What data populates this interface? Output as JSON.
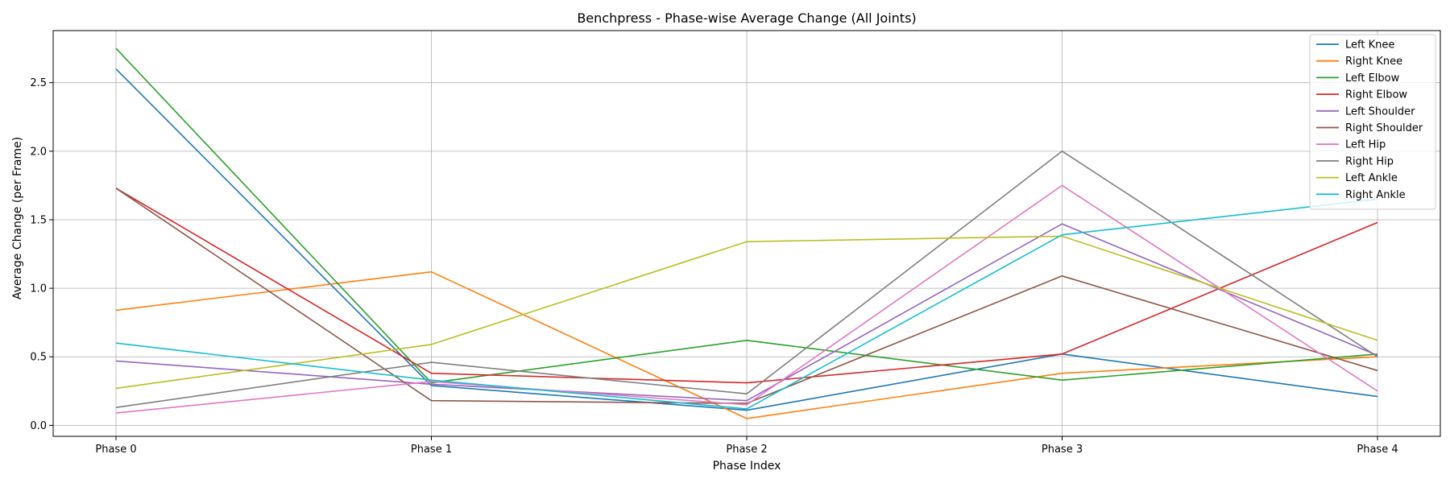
{
  "chart_data": {
    "type": "line",
    "title": "Benchpress - Phase-wise Average Change (All Joints)",
    "xlabel": "Phase Index",
    "ylabel": "Average Change (per Frame)",
    "categories": [
      "Phase 0",
      "Phase 1",
      "Phase 2",
      "Phase 3",
      "Phase 4"
    ],
    "ylim": [
      -0.08,
      2.88
    ],
    "yticks": [
      0.0,
      0.5,
      1.0,
      1.5,
      2.0,
      2.5
    ],
    "ytick_labels": [
      "0.0",
      "0.5",
      "1.0",
      "1.5",
      "2.0",
      "2.5"
    ],
    "grid": true,
    "legend_position": "top-right",
    "series": [
      {
        "name": "Left Knee",
        "color": "#1f77b4",
        "values": [
          2.6,
          0.29,
          0.11,
          0.52,
          0.21
        ]
      },
      {
        "name": "Right Knee",
        "color": "#ff7f0e",
        "values": [
          0.84,
          1.12,
          0.05,
          0.38,
          0.5
        ]
      },
      {
        "name": "Left Elbow",
        "color": "#2ca02c",
        "values": [
          2.75,
          0.31,
          0.62,
          0.33,
          0.52
        ]
      },
      {
        "name": "Right Elbow",
        "color": "#d62728",
        "values": [
          1.73,
          0.38,
          0.31,
          0.52,
          1.48
        ]
      },
      {
        "name": "Left Shoulder",
        "color": "#9467bd",
        "values": [
          0.47,
          0.3,
          0.18,
          1.47,
          0.51
        ]
      },
      {
        "name": "Right Shoulder",
        "color": "#8c564b",
        "values": [
          1.73,
          0.18,
          0.16,
          1.09,
          0.4
        ]
      },
      {
        "name": "Left Hip",
        "color": "#e377c2",
        "values": [
          0.09,
          0.32,
          0.15,
          1.75,
          0.25
        ]
      },
      {
        "name": "Right Hip",
        "color": "#7f7f7f",
        "values": [
          0.13,
          0.46,
          0.23,
          2.0,
          0.5
        ]
      },
      {
        "name": "Left Ankle",
        "color": "#bcbd22",
        "values": [
          0.27,
          0.59,
          1.34,
          1.38,
          0.62
        ]
      },
      {
        "name": "Right Ankle",
        "color": "#17becf",
        "values": [
          0.6,
          0.33,
          0.12,
          1.39,
          1.65
        ]
      }
    ]
  }
}
